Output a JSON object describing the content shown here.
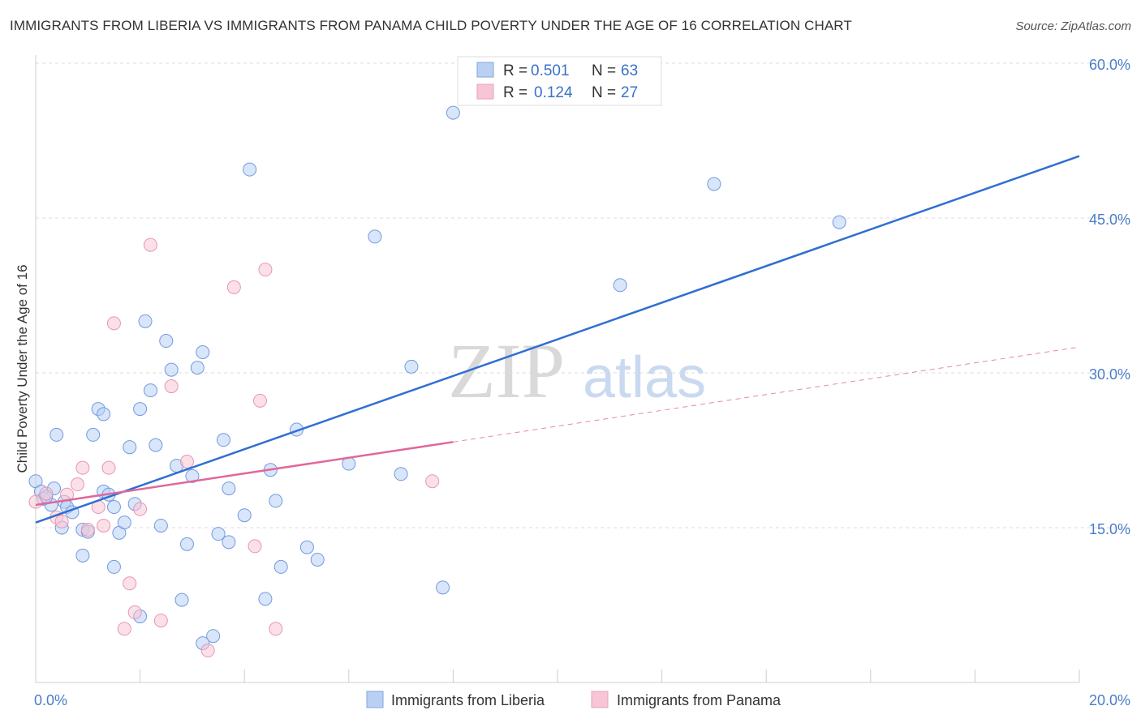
{
  "title": "IMMIGRANTS FROM LIBERIA VS IMMIGRANTS FROM PANAMA CHILD POVERTY UNDER THE AGE OF 16 CORRELATION CHART",
  "source": "Source: ZipAtlas.com",
  "watermark": {
    "zip": "ZIP",
    "atlas": "atlas"
  },
  "colors": {
    "liberia": "#2f6fd1",
    "liberia_fill": "#b9d0f2",
    "panama": "#e0689a",
    "panama_fill": "#f7c6d6",
    "tick_text": "#4a7cc9"
  },
  "legend": {
    "r_label": "R = ",
    "n_label": "N = ",
    "rows": [
      {
        "r": "0.501",
        "n": "63"
      },
      {
        "r": "0.124",
        "n": "27"
      }
    ]
  },
  "chart_data": {
    "type": "scatter",
    "xlabel": "",
    "ylabel": "Child Poverty Under the Age of 16",
    "xlim": [
      0,
      20
    ],
    "ylim": [
      0,
      60
    ],
    "x_tick_labels": [
      "0.0%",
      "20.0%"
    ],
    "y_tick_labels": [
      "15.0%",
      "30.0%",
      "45.0%",
      "60.0%"
    ],
    "y_ticks": [
      15,
      30,
      45,
      60
    ],
    "grid": true,
    "legend_position": "top-center",
    "series": [
      {
        "name": "Immigrants from Liberia",
        "r": 0.501,
        "n": 63,
        "trend": {
          "x": [
            0,
            20
          ],
          "y": [
            15.5,
            51
          ]
        },
        "points": [
          [
            0.0,
            19.5
          ],
          [
            0.1,
            18.5
          ],
          [
            0.15,
            17.8
          ],
          [
            0.3,
            17.2
          ],
          [
            0.35,
            18.8
          ],
          [
            0.5,
            15.0
          ],
          [
            0.55,
            17.5
          ],
          [
            0.4,
            24.0
          ],
          [
            0.6,
            17.0
          ],
          [
            0.7,
            16.5
          ],
          [
            0.9,
            14.8
          ],
          [
            0.9,
            12.3
          ],
          [
            1.1,
            24.0
          ],
          [
            1.2,
            26.5
          ],
          [
            1.3,
            26.0
          ],
          [
            1.3,
            18.5
          ],
          [
            1.4,
            18.2
          ],
          [
            1.5,
            17.0
          ],
          [
            1.5,
            11.2
          ],
          [
            1.6,
            14.5
          ],
          [
            1.7,
            15.5
          ],
          [
            1.8,
            22.8
          ],
          [
            1.9,
            17.3
          ],
          [
            2.0,
            26.5
          ],
          [
            2.1,
            35.0
          ],
          [
            2.2,
            28.3
          ],
          [
            2.3,
            23.0
          ],
          [
            2.4,
            15.2
          ],
          [
            2.5,
            33.1
          ],
          [
            2.6,
            30.3
          ],
          [
            2.7,
            21.0
          ],
          [
            2.8,
            8.0
          ],
          [
            2.9,
            13.4
          ],
          [
            3.0,
            20.0
          ],
          [
            3.1,
            30.5
          ],
          [
            3.2,
            32.0
          ],
          [
            3.4,
            4.5
          ],
          [
            3.2,
            3.8
          ],
          [
            3.5,
            14.4
          ],
          [
            3.6,
            23.5
          ],
          [
            3.7,
            18.8
          ],
          [
            3.7,
            13.6
          ],
          [
            4.0,
            16.2
          ],
          [
            4.1,
            49.7
          ],
          [
            4.4,
            8.1
          ],
          [
            4.5,
            20.6
          ],
          [
            4.6,
            17.6
          ],
          [
            4.7,
            11.2
          ],
          [
            5.0,
            24.5
          ],
          [
            5.2,
            13.1
          ],
          [
            5.4,
            11.9
          ],
          [
            6.0,
            21.2
          ],
          [
            6.5,
            43.2
          ],
          [
            7.0,
            20.2
          ],
          [
            7.2,
            30.6
          ],
          [
            7.8,
            9.2
          ],
          [
            8.0,
            55.2
          ],
          [
            1.0,
            14.6
          ],
          [
            2.0,
            6.4
          ],
          [
            11.2,
            38.5
          ],
          [
            13.0,
            48.3
          ],
          [
            15.4,
            44.6
          ],
          [
            0.2,
            18.0
          ]
        ]
      },
      {
        "name": "Immigrants from Panama",
        "r": 0.124,
        "n": 27,
        "trend": {
          "x": [
            0,
            8.0
          ],
          "y": [
            17.2,
            23.3
          ]
        },
        "trend_extended": {
          "x": [
            8.0,
            20
          ],
          "y": [
            23.3,
            32.5
          ]
        },
        "points": [
          [
            0.0,
            17.5
          ],
          [
            0.2,
            18.3
          ],
          [
            0.4,
            16.0
          ],
          [
            0.5,
            15.6
          ],
          [
            0.6,
            18.2
          ],
          [
            0.8,
            19.2
          ],
          [
            0.9,
            20.8
          ],
          [
            1.0,
            14.8
          ],
          [
            1.2,
            17.0
          ],
          [
            1.3,
            15.2
          ],
          [
            1.4,
            20.8
          ],
          [
            1.5,
            34.8
          ],
          [
            1.7,
            5.2
          ],
          [
            1.8,
            9.6
          ],
          [
            1.9,
            6.8
          ],
          [
            2.0,
            16.8
          ],
          [
            2.2,
            42.4
          ],
          [
            2.4,
            6.0
          ],
          [
            2.6,
            28.7
          ],
          [
            2.9,
            21.4
          ],
          [
            3.3,
            3.1
          ],
          [
            3.8,
            38.3
          ],
          [
            4.2,
            13.2
          ],
          [
            4.3,
            27.3
          ],
          [
            4.4,
            40.0
          ],
          [
            4.6,
            5.2
          ],
          [
            7.6,
            19.5
          ]
        ]
      }
    ]
  }
}
